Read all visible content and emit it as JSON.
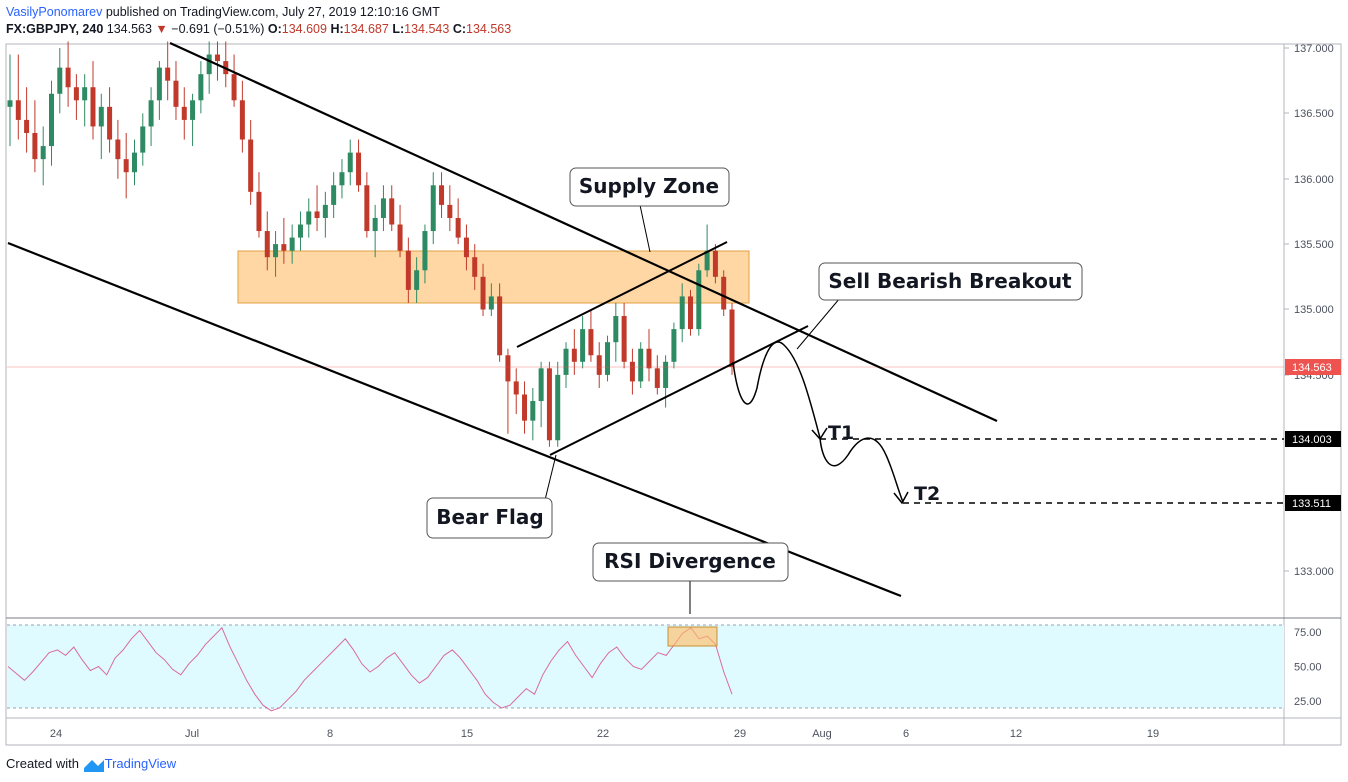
{
  "header": {
    "author": "VasilyPonomarev",
    "published": "published on TradingView.com, July 27, 2019 12:10:16 GMT",
    "symbol": "FX:GBPJPY, 240",
    "last": "134.563",
    "change_arrow": "▼",
    "change": "−0.691 (−0.51%)",
    "open_label": "O:",
    "open": "134.609",
    "high_label": "H:",
    "high": "134.687",
    "low_label": "L:",
    "low": "134.543",
    "close_label": "C:",
    "close": "134.563"
  },
  "footer": {
    "created_with": "Created with",
    "brand": "TradingView"
  },
  "colors": {
    "up": "#2e8a63",
    "down": "#c0392b",
    "supply_zone": "#ffbd69",
    "rsi_band": "#e0fbff",
    "rsi_line": "#d96aa0",
    "current_price_bg": "#ef5350"
  },
  "chart_data": {
    "type": "candlestick",
    "price_axis": {
      "ticks": [
        "137.000",
        "136.500",
        "136.000",
        "135.500",
        "135.000",
        "134.500",
        "133.000"
      ],
      "ylim": [
        132.65,
        137.05
      ]
    },
    "time_axis": {
      "ticks": [
        "24",
        "Jul",
        "8",
        "15",
        "22",
        "29",
        "Aug",
        "6",
        "12",
        "19"
      ]
    },
    "current_price": "134.563",
    "target_labels": [
      {
        "name": "T1",
        "price": "134.003"
      },
      {
        "name": "T2",
        "price": "133.511"
      }
    ],
    "annotations": {
      "supply_zone": "Supply Zone",
      "bear_flag": "Bear Flag",
      "sell_breakout": "Sell Bearish Breakout",
      "rsi_divergence": "RSI Divergence"
    },
    "supply_zone_range": [
      135.03,
      135.45
    ],
    "candles_approx": [
      [
        136.55,
        136.95,
        136.25,
        136.6
      ],
      [
        136.6,
        136.95,
        136.3,
        136.45
      ],
      [
        136.45,
        136.7,
        136.2,
        136.35
      ],
      [
        136.35,
        136.6,
        136.05,
        136.15
      ],
      [
        136.15,
        136.4,
        135.95,
        136.25
      ],
      [
        136.25,
        136.75,
        136.1,
        136.65
      ],
      [
        136.65,
        137.0,
        136.5,
        136.85
      ],
      [
        136.85,
        137.05,
        136.55,
        136.7
      ],
      [
        136.7,
        136.8,
        136.45,
        136.6
      ],
      [
        136.6,
        136.8,
        136.4,
        136.7
      ],
      [
        136.7,
        136.9,
        136.3,
        136.4
      ],
      [
        136.4,
        136.65,
        136.15,
        136.55
      ],
      [
        136.55,
        136.7,
        136.2,
        136.3
      ],
      [
        136.3,
        136.45,
        136.0,
        136.15
      ],
      [
        136.15,
        136.35,
        135.85,
        136.05
      ],
      [
        136.05,
        136.3,
        135.95,
        136.2
      ],
      [
        136.2,
        136.5,
        136.1,
        136.4
      ],
      [
        136.4,
        136.7,
        136.25,
        136.6
      ],
      [
        136.6,
        136.9,
        136.45,
        136.85
      ],
      [
        136.85,
        137.05,
        136.6,
        136.75
      ],
      [
        136.75,
        136.9,
        136.45,
        136.55
      ],
      [
        136.55,
        136.7,
        136.3,
        136.45
      ],
      [
        136.45,
        136.65,
        136.25,
        136.6
      ],
      [
        136.6,
        136.9,
        136.5,
        136.8
      ],
      [
        136.8,
        137.05,
        136.65,
        136.95
      ],
      [
        136.95,
        137.05,
        136.75,
        136.9
      ],
      [
        136.9,
        137.05,
        136.7,
        136.8
      ],
      [
        136.8,
        136.95,
        136.55,
        136.6
      ],
      [
        136.6,
        136.75,
        136.2,
        136.3
      ],
      [
        136.3,
        136.45,
        135.8,
        135.9
      ],
      [
        135.9,
        136.05,
        135.55,
        135.6
      ],
      [
        135.6,
        135.75,
        135.3,
        135.4
      ],
      [
        135.4,
        135.6,
        135.25,
        135.5
      ],
      [
        135.5,
        135.7,
        135.35,
        135.45
      ],
      [
        135.45,
        135.65,
        135.35,
        135.55
      ],
      [
        135.55,
        135.75,
        135.45,
        135.65
      ],
      [
        135.65,
        135.85,
        135.55,
        135.75
      ],
      [
        135.75,
        135.95,
        135.6,
        135.7
      ],
      [
        135.7,
        135.9,
        135.55,
        135.8
      ],
      [
        135.8,
        136.05,
        135.7,
        135.95
      ],
      [
        135.95,
        136.15,
        135.85,
        136.05
      ],
      [
        136.05,
        136.3,
        135.95,
        136.2
      ],
      [
        136.2,
        136.3,
        135.9,
        135.95
      ],
      [
        135.95,
        136.05,
        135.55,
        135.6
      ],
      [
        135.6,
        135.8,
        135.4,
        135.7
      ],
      [
        135.7,
        135.95,
        135.6,
        135.85
      ],
      [
        135.85,
        135.95,
        135.6,
        135.65
      ],
      [
        135.65,
        135.8,
        135.4,
        135.45
      ],
      [
        135.45,
        135.55,
        135.05,
        135.15
      ],
      [
        135.15,
        135.4,
        135.05,
        135.3
      ],
      [
        135.3,
        135.65,
        135.2,
        135.6
      ],
      [
        135.6,
        136.05,
        135.5,
        135.95
      ],
      [
        135.95,
        136.05,
        135.7,
        135.8
      ],
      [
        135.8,
        135.95,
        135.6,
        135.7
      ],
      [
        135.7,
        135.85,
        135.5,
        135.55
      ],
      [
        135.55,
        135.65,
        135.3,
        135.4
      ],
      [
        135.4,
        135.5,
        135.15,
        135.25
      ],
      [
        135.25,
        135.35,
        134.95,
        135.0
      ],
      [
        135.0,
        135.2,
        134.95,
        135.1
      ],
      [
        135.1,
        135.2,
        134.6,
        134.65
      ],
      [
        134.65,
        134.7,
        134.05,
        134.45
      ],
      [
        134.45,
        134.55,
        134.2,
        134.35
      ],
      [
        134.35,
        134.45,
        134.05,
        134.15
      ],
      [
        134.15,
        134.4,
        134.0,
        134.3
      ],
      [
        134.3,
        134.6,
        134.1,
        134.55
      ],
      [
        134.55,
        134.6,
        133.95,
        134.0
      ],
      [
        134.0,
        134.6,
        133.95,
        134.5
      ],
      [
        134.5,
        134.75,
        134.4,
        134.7
      ],
      [
        134.7,
        134.85,
        134.5,
        134.6
      ],
      [
        134.6,
        134.95,
        134.55,
        134.85
      ],
      [
        134.85,
        135.0,
        134.6,
        134.65
      ],
      [
        134.65,
        134.75,
        134.4,
        134.5
      ],
      [
        134.5,
        134.8,
        134.45,
        134.75
      ],
      [
        134.75,
        135.05,
        134.6,
        134.95
      ],
      [
        134.95,
        135.05,
        134.55,
        134.6
      ],
      [
        134.6,
        134.7,
        134.35,
        134.45
      ],
      [
        134.45,
        134.75,
        134.4,
        134.7
      ],
      [
        134.7,
        134.85,
        134.45,
        134.55
      ],
      [
        134.55,
        134.65,
        134.35,
        134.4
      ],
      [
        134.4,
        134.65,
        134.25,
        134.6
      ],
      [
        134.6,
        134.9,
        134.55,
        134.85
      ],
      [
        134.85,
        135.2,
        134.75,
        135.1
      ],
      [
        135.1,
        135.15,
        134.8,
        134.85
      ],
      [
        134.85,
        135.35,
        134.8,
        135.3
      ],
      [
        135.3,
        135.65,
        135.25,
        135.45
      ],
      [
        135.45,
        135.5,
        135.2,
        135.25
      ],
      [
        135.25,
        135.3,
        134.95,
        135.0
      ],
      [
        135.0,
        135.05,
        134.5,
        134.56
      ]
    ],
    "rsi": {
      "ticks": [
        "75.00",
        "50.00",
        "25.00"
      ],
      "ylim": [
        15,
        85
      ],
      "values": [
        50,
        45,
        40,
        46,
        53,
        60,
        62,
        58,
        64,
        55,
        47,
        50,
        44,
        56,
        62,
        70,
        76,
        68,
        60,
        55,
        48,
        44,
        52,
        58,
        66,
        72,
        78,
        64,
        52,
        40,
        30,
        22,
        18,
        20,
        26,
        32,
        40,
        46,
        52,
        58,
        64,
        70,
        62,
        52,
        46,
        50,
        56,
        60,
        52,
        44,
        38,
        42,
        50,
        58,
        62,
        56,
        48,
        40,
        30,
        24,
        20,
        22,
        28,
        34,
        30,
        44,
        54,
        62,
        68,
        58,
        50,
        42,
        52,
        60,
        64,
        56,
        50,
        48,
        54,
        60,
        58,
        66,
        74,
        78,
        70,
        72,
        66,
        46,
        30
      ]
    }
  }
}
